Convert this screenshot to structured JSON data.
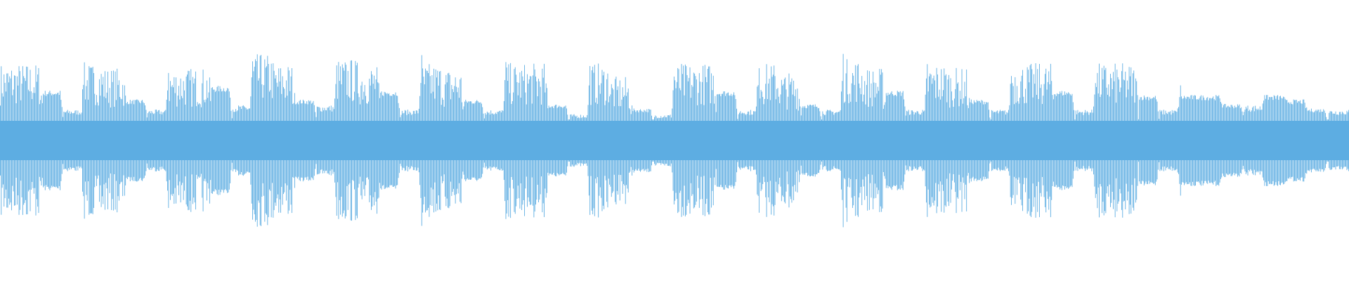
{
  "waveform": {
    "color": "#5DADE2",
    "background": "#FFFFFF",
    "envelope": {
      "amplitude_fraction": [
        0.85,
        0.85,
        0.55,
        0.2,
        0.85,
        0.8,
        0.45,
        0.2,
        0.8,
        0.8,
        0.6,
        0.25,
        0.95,
        0.85,
        0.45,
        0.25,
        0.9,
        0.85,
        0.55,
        0.2,
        0.85,
        0.8,
        0.45,
        0.2,
        0.85,
        0.85,
        0.4,
        0.15,
        0.85,
        0.7,
        0.35,
        0.15,
        0.85,
        0.85,
        0.55,
        0.2,
        0.85,
        0.75,
        0.4,
        0.2,
        0.9,
        0.8,
        0.55,
        0.2,
        0.85,
        0.8,
        0.45,
        0.2,
        0.85,
        0.85,
        0.55,
        0.2,
        0.85,
        0.85,
        0.5,
        0.2,
        0.5,
        0.5,
        0.4,
        0.25,
        0.5,
        0.45,
        0.35,
        0.2
      ],
      "style": [
        "spiky",
        "spiky",
        "solid",
        "quiet",
        "spiky",
        "spiky",
        "solid",
        "quiet",
        "spiky",
        "spiky",
        "solid",
        "quiet",
        "spiky",
        "spiky",
        "solid",
        "quiet",
        "spiky",
        "spiky",
        "solid",
        "quiet",
        "spiky",
        "spiky",
        "solid",
        "quiet",
        "spiky",
        "spiky",
        "solid",
        "quiet",
        "spiky",
        "spiky",
        "solid",
        "quiet",
        "spiky",
        "spiky",
        "solid",
        "quiet",
        "spiky",
        "spiky",
        "solid",
        "quiet",
        "spiky",
        "spiky",
        "solid",
        "quiet",
        "spiky",
        "spiky",
        "solid",
        "quiet",
        "spiky",
        "spiky",
        "solid",
        "quiet",
        "spiky",
        "spiky",
        "solid",
        "quiet",
        "solid",
        "solid",
        "solid",
        "quiet",
        "solid",
        "solid",
        "solid",
        "quiet"
      ]
    }
  }
}
